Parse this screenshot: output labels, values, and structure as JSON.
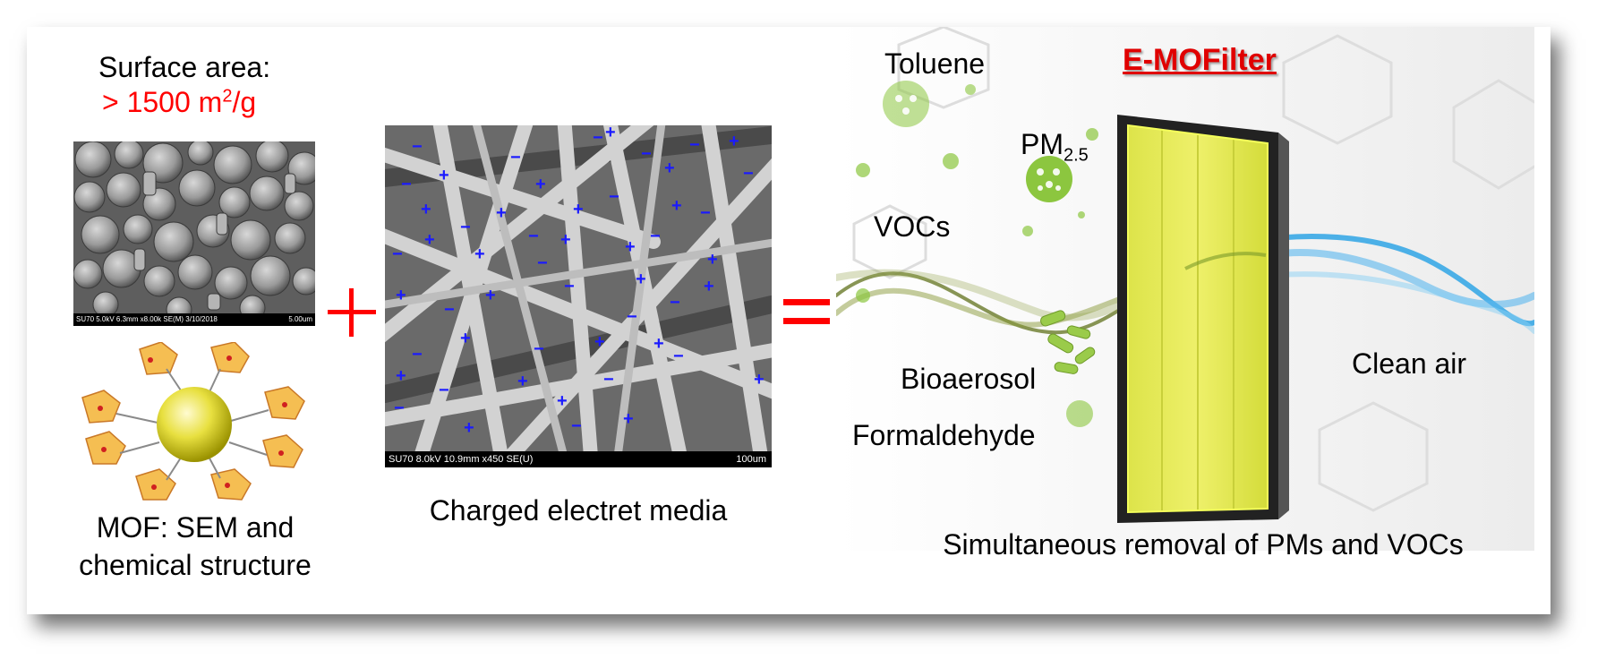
{
  "left": {
    "surface_title": "Surface area:",
    "surface_value_prefix": "> 1500 m",
    "surface_value_sup": "2",
    "surface_value_suffix": "/g",
    "mof_sem_bar_left": "SU70 5.0kV 6.3mm x8.00k SE(M) 3/10/2018",
    "mof_sem_bar_right": "5.00um",
    "caption": "MOF: SEM and chemical structure"
  },
  "middle": {
    "sem_bar_left": "SU70 8.0kV 10.9mm x450 SE(U)",
    "sem_bar_right": "100um",
    "caption": "Charged electret media"
  },
  "right": {
    "product_title": "E-MOFilter",
    "labels": {
      "toluene": "Toluene",
      "pm_main": "PM",
      "pm_sub": "2.5",
      "vocs": "VOCs",
      "bioaerosol": "Bioaerosol",
      "formaldehyde": "Formaldehyde",
      "clean_air": "Clean air"
    },
    "summary": "Simultaneous removal of PMs and VOCs"
  },
  "colors": {
    "accent_red": "#ff0000",
    "charge_blue": "#1a1aff",
    "filter_yellow": "#e6ee4a",
    "particle_green": "#8cc63f",
    "clean_air_blue": "#3aa8e6"
  }
}
